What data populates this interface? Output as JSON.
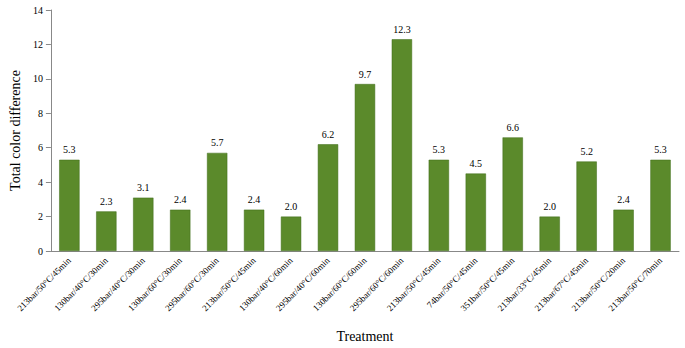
{
  "chart_data": {
    "type": "bar",
    "x_label": "Treatment",
    "y_label": "Total color difference",
    "categories": [
      "213bar/50°C/45min",
      "130bar/40°C/30min",
      "295bar/40°C/30min",
      "130bar/60°C/30min",
      "295bar/60°C/30min",
      "213bar/50°C/45min",
      "130bar/40°C/60min",
      "295bar/40°C/60min",
      "130bar/60°C/60min",
      "295bar/60°C/60min",
      "213bar/50°C/45min",
      "74bar/50°C/45min",
      "351bar/50°C/45min",
      "213bar/33°C/45min",
      "213bar/67°C/45min",
      "213bar/50°C/20min",
      "213bar/50°C/70min"
    ],
    "values": [
      5.3,
      2.3,
      3.1,
      2.4,
      5.7,
      2.4,
      2.0,
      6.2,
      9.7,
      12.3,
      5.3,
      4.5,
      6.6,
      2.0,
      5.2,
      2.4,
      5.3
    ],
    "value_labels": [
      "5.3",
      "2.3",
      "3.1",
      "2.4",
      "5.7",
      "2.4",
      "2.0",
      "6.2",
      "9.7",
      "12.3",
      "5.3",
      "4.5",
      "6.6",
      "2.0",
      "5.2",
      "2.4",
      "5.3"
    ],
    "color": "#5b8a2b",
    "ylim": [
      0,
      14
    ],
    "yticks": [
      0,
      2,
      4,
      6,
      8,
      10,
      12,
      14
    ],
    "grid": false,
    "data_labels": true
  }
}
